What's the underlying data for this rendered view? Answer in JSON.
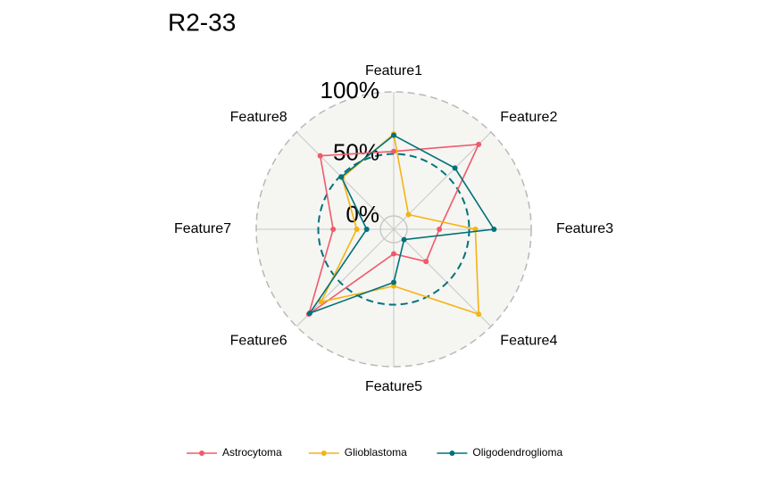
{
  "chart_data": {
    "type": "radar",
    "title": "R2-33",
    "categories": [
      "Feature1",
      "Feature2",
      "Feature3",
      "Feature4",
      "Feature5",
      "Feature6",
      "Feature7",
      "Feature8"
    ],
    "series": [
      {
        "name": "Astrocytoma",
        "color": "#ef5a6a",
        "values": [
          52,
          86,
          26,
          26,
          9,
          86,
          38,
          73
        ]
      },
      {
        "name": "Glioblastoma",
        "color": "#f5b40f",
        "values": [
          66,
          6,
          55,
          86,
          35,
          72,
          19,
          48
        ]
      },
      {
        "name": "Oligodendroglioma",
        "color": "#00727a",
        "values": [
          65,
          59,
          70,
          1,
          32,
          85,
          11,
          49
        ]
      }
    ],
    "ylim": [
      0,
      100
    ],
    "yticks": [
      {
        "value": 0,
        "label": "0%"
      },
      {
        "value": 50,
        "label": "50%"
      },
      {
        "value": 100,
        "label": "100%"
      }
    ],
    "legend": "bottom"
  }
}
